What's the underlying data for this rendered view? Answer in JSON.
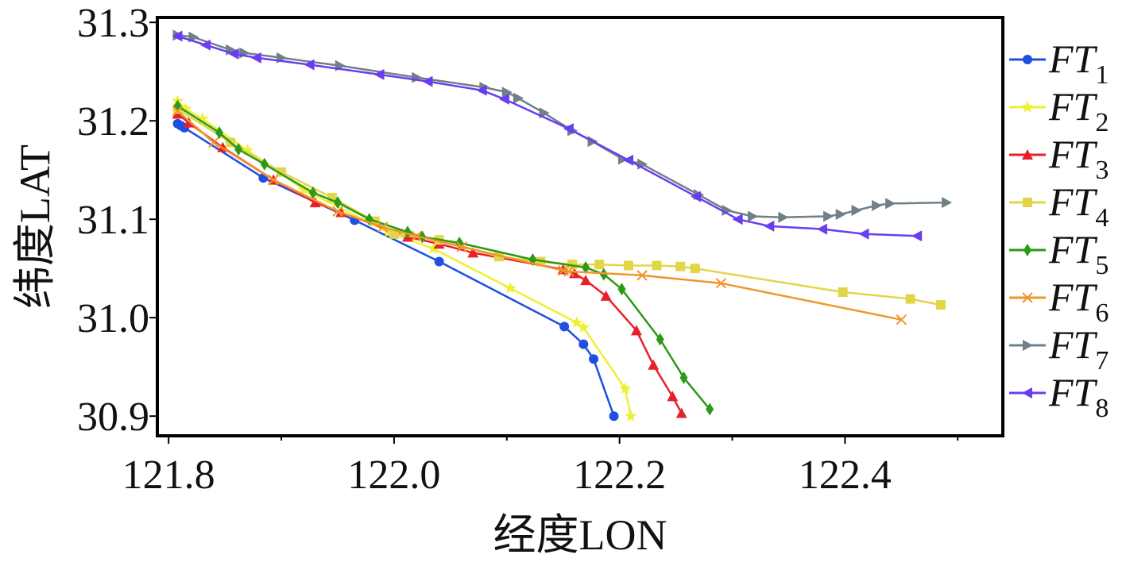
{
  "chart_data": {
    "type": "line",
    "xlabel": "经度LON",
    "ylabel": "纬度LAT",
    "xlim": [
      121.79,
      122.54
    ],
    "ylim": [
      30.88,
      31.305
    ],
    "xticks": [
      121.8,
      122.0,
      122.2,
      122.4
    ],
    "xtick_labels": [
      "121.8",
      "122.0",
      "122.2",
      "122.4"
    ],
    "yticks": [
      30.9,
      31.0,
      31.1,
      31.2,
      31.3
    ],
    "ytick_labels": [
      "30.9",
      "31.0",
      "31.1",
      "31.2",
      "31.3"
    ],
    "legend_position": "right",
    "grid": false,
    "series": [
      {
        "name": "FT",
        "sub": "1",
        "color": "#1f4fe0",
        "marker": "circle",
        "points": [
          [
            121.808,
            31.197
          ],
          [
            121.811,
            31.195
          ],
          [
            121.814,
            31.193
          ],
          [
            121.884,
            31.142
          ],
          [
            121.965,
            31.099
          ],
          [
            122.04,
            31.057
          ],
          [
            122.151,
            30.991
          ],
          [
            122.168,
            30.973
          ],
          [
            122.177,
            30.958
          ],
          [
            122.195,
            30.9
          ]
        ]
      },
      {
        "name": "FT",
        "sub": "2",
        "color": "#eef032",
        "marker": "star",
        "points": [
          [
            121.808,
            31.22
          ],
          [
            121.815,
            31.212
          ],
          [
            121.83,
            31.202
          ],
          [
            121.87,
            31.17
          ],
          [
            121.92,
            31.13
          ],
          [
            121.995,
            31.087
          ],
          [
            122.035,
            31.07
          ],
          [
            122.103,
            31.03
          ],
          [
            122.162,
            30.995
          ],
          [
            122.168,
            30.99
          ],
          [
            122.205,
            30.928
          ],
          [
            122.21,
            30.9
          ]
        ]
      },
      {
        "name": "FT",
        "sub": "3",
        "color": "#e8202a",
        "marker": "triangle-up",
        "points": [
          [
            121.808,
            31.207
          ],
          [
            121.818,
            31.198
          ],
          [
            121.848,
            31.173
          ],
          [
            121.893,
            31.14
          ],
          [
            121.93,
            31.117
          ],
          [
            121.953,
            31.107
          ],
          [
            122.012,
            31.082
          ],
          [
            122.04,
            31.075
          ],
          [
            122.07,
            31.066
          ],
          [
            122.15,
            31.049
          ],
          [
            122.16,
            31.045
          ],
          [
            122.17,
            31.038
          ],
          [
            122.188,
            31.022
          ],
          [
            122.215,
            30.987
          ],
          [
            122.23,
            30.952
          ],
          [
            122.247,
            30.92
          ],
          [
            122.255,
            30.903
          ]
        ]
      },
      {
        "name": "FT",
        "sub": "4",
        "color": "#e3d548",
        "marker": "square",
        "points": [
          [
            121.808,
            31.212
          ],
          [
            121.855,
            31.178
          ],
          [
            121.9,
            31.148
          ],
          [
            121.945,
            31.122
          ],
          [
            121.983,
            31.098
          ],
          [
            122.0,
            31.085
          ],
          [
            122.04,
            31.079
          ],
          [
            122.093,
            31.062
          ],
          [
            122.13,
            31.057
          ],
          [
            122.158,
            31.054
          ],
          [
            122.182,
            31.054
          ],
          [
            122.208,
            31.053
          ],
          [
            122.233,
            31.053
          ],
          [
            122.254,
            31.052
          ],
          [
            122.267,
            31.05
          ],
          [
            122.398,
            31.026
          ],
          [
            122.458,
            31.019
          ],
          [
            122.485,
            31.013
          ]
        ]
      },
      {
        "name": "FT",
        "sub": "5",
        "color": "#2a9a17",
        "marker": "diamond",
        "points": [
          [
            121.808,
            31.215
          ],
          [
            121.845,
            31.188
          ],
          [
            121.862,
            31.171
          ],
          [
            121.885,
            31.156
          ],
          [
            121.928,
            31.127
          ],
          [
            121.95,
            31.117
          ],
          [
            121.978,
            31.1
          ],
          [
            122.012,
            31.087
          ],
          [
            122.025,
            31.082
          ],
          [
            122.058,
            31.076
          ],
          [
            122.123,
            31.059
          ],
          [
            122.17,
            31.051
          ],
          [
            122.186,
            31.044
          ],
          [
            122.202,
            31.029
          ],
          [
            122.236,
            30.978
          ],
          [
            122.257,
            30.939
          ],
          [
            122.28,
            30.907
          ]
        ]
      },
      {
        "name": "FT",
        "sub": "6",
        "color": "#f0962a",
        "marker": "x",
        "points": [
          [
            121.808,
            31.21
          ],
          [
            121.84,
            31.178
          ],
          [
            121.893,
            31.14
          ],
          [
            121.95,
            31.108
          ],
          [
            121.99,
            31.092
          ],
          [
            122.02,
            31.083
          ],
          [
            122.06,
            31.072
          ],
          [
            122.15,
            31.048
          ],
          [
            122.155,
            31.047
          ],
          [
            122.22,
            31.043
          ],
          [
            122.29,
            31.035
          ],
          [
            122.45,
            30.998
          ]
        ]
      },
      {
        "name": "FT",
        "sub": "7",
        "color": "#6f8089",
        "marker": "triangle-right",
        "points": [
          [
            121.808,
            31.287
          ],
          [
            121.822,
            31.285
          ],
          [
            121.855,
            31.272
          ],
          [
            121.867,
            31.269
          ],
          [
            121.9,
            31.264
          ],
          [
            121.952,
            31.256
          ],
          [
            122.02,
            31.244
          ],
          [
            122.08,
            31.234
          ],
          [
            122.1,
            31.229
          ],
          [
            122.11,
            31.223
          ],
          [
            122.133,
            31.208
          ],
          [
            122.158,
            31.19
          ],
          [
            122.176,
            31.179
          ],
          [
            122.203,
            31.161
          ],
          [
            122.22,
            31.156
          ],
          [
            122.27,
            31.125
          ],
          [
            122.295,
            31.109
          ],
          [
            122.318,
            31.103
          ],
          [
            122.345,
            31.102
          ],
          [
            122.385,
            31.103
          ],
          [
            122.396,
            31.105
          ],
          [
            122.41,
            31.109
          ],
          [
            122.428,
            31.114
          ],
          [
            122.44,
            31.116
          ],
          [
            122.49,
            31.117
          ]
        ]
      },
      {
        "name": "FT",
        "sub": "8",
        "color": "#6a3cf2",
        "marker": "triangle-left",
        "points": [
          [
            121.808,
            31.286
          ],
          [
            121.833,
            31.277
          ],
          [
            121.858,
            31.268
          ],
          [
            121.878,
            31.264
          ],
          [
            121.925,
            31.257
          ],
          [
            121.987,
            31.247
          ],
          [
            122.03,
            31.24
          ],
          [
            122.078,
            31.231
          ],
          [
            122.098,
            31.222
          ],
          [
            122.155,
            31.192
          ],
          [
            122.208,
            31.16
          ],
          [
            122.268,
            31.123
          ],
          [
            122.305,
            31.1
          ],
          [
            122.333,
            31.093
          ],
          [
            122.38,
            31.09
          ],
          [
            122.417,
            31.085
          ],
          [
            122.464,
            31.083
          ]
        ]
      }
    ]
  }
}
